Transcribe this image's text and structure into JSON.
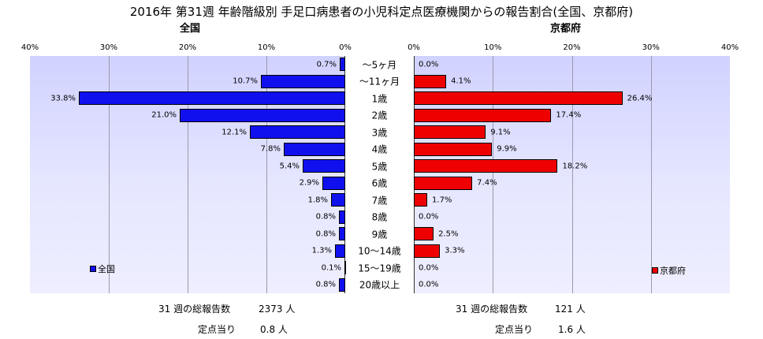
{
  "title": "2016年 第31週 年齢階級別 手足口病患者の小児科定点医療機関からの報告割合(全国、京都府)",
  "chart_data": {
    "type": "bar",
    "orientation": "horizontal",
    "categories": [
      "～5ヶ月",
      "～11ヶ月",
      "1歳",
      "2歳",
      "3歳",
      "4歳",
      "5歳",
      "6歳",
      "7歳",
      "8歳",
      "9歳",
      "10～14歳",
      "15～19歳",
      "20歳以上"
    ],
    "series": [
      {
        "name": "全国",
        "values": [
          0.7,
          10.7,
          33.8,
          21.0,
          12.1,
          7.8,
          5.4,
          2.9,
          1.8,
          0.8,
          0.8,
          1.3,
          0.1,
          0.8
        ],
        "color": "#1010ee"
      },
      {
        "name": "京都府",
        "values": [
          0.0,
          4.1,
          26.4,
          17.4,
          9.1,
          9.9,
          18.2,
          7.4,
          1.7,
          0.0,
          2.5,
          3.3,
          0.0,
          0.0
        ],
        "color": "#ee0000"
      }
    ],
    "panels": [
      {
        "title": "全国",
        "ticks": [
          "40%",
          "30%",
          "20%",
          "10%",
          "0%"
        ]
      },
      {
        "title": "京都府",
        "ticks": [
          "0%",
          "10%",
          "20%",
          "30%",
          "40%"
        ]
      }
    ],
    "xlim": [
      0,
      40
    ],
    "grid": true,
    "legend": "bottom-inside"
  },
  "summary": {
    "left": {
      "total_label": "31 週の総報告数",
      "total_value": "2373 人",
      "per_label": "定点当り",
      "per_value": "0.8 人"
    },
    "right": {
      "total_label": "31 週の総報告数",
      "total_value": "121 人",
      "per_label": "定点当り",
      "per_value": "1.6 人"
    }
  }
}
